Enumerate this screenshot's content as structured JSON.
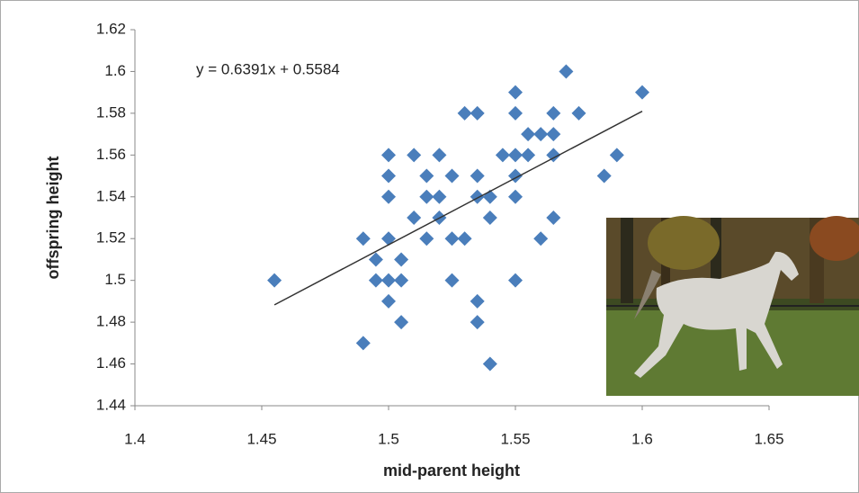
{
  "chart_data": {
    "type": "scatter",
    "x_label": "mid-parent height",
    "y_label": "offspring height",
    "trendline": {
      "slope": 0.6391,
      "intercept": 0.5584,
      "label": "y = 0.6391x + 0.5584",
      "color": "#333333"
    },
    "color": "#4a7ebb",
    "x": [
      1.455,
      1.49,
      1.49,
      1.495,
      1.495,
      1.5,
      1.5,
      1.5,
      1.5,
      1.5,
      1.5,
      1.505,
      1.505,
      1.505,
      1.51,
      1.51,
      1.515,
      1.515,
      1.515,
      1.52,
      1.52,
      1.52,
      1.525,
      1.525,
      1.525,
      1.53,
      1.53,
      1.535,
      1.535,
      1.535,
      1.535,
      1.535,
      1.54,
      1.54,
      1.54,
      1.545,
      1.55,
      1.55,
      1.55,
      1.55,
      1.55,
      1.55,
      1.555,
      1.555,
      1.56,
      1.56,
      1.565,
      1.565,
      1.565,
      1.565,
      1.57,
      1.575,
      1.585,
      1.59,
      1.6
    ],
    "values": [
      1.5,
      1.52,
      1.47,
      1.51,
      1.5,
      1.56,
      1.55,
      1.54,
      1.52,
      1.5,
      1.49,
      1.51,
      1.5,
      1.48,
      1.56,
      1.53,
      1.55,
      1.54,
      1.52,
      1.56,
      1.54,
      1.53,
      1.55,
      1.52,
      1.5,
      1.58,
      1.52,
      1.58,
      1.55,
      1.54,
      1.49,
      1.48,
      1.54,
      1.53,
      1.46,
      1.56,
      1.59,
      1.58,
      1.56,
      1.55,
      1.54,
      1.5,
      1.57,
      1.56,
      1.57,
      1.52,
      1.58,
      1.57,
      1.56,
      1.53,
      1.6,
      1.58,
      1.55,
      1.56,
      1.59
    ],
    "xlim": [
      1.4,
      1.65
    ],
    "xticks": [
      1.4,
      1.45,
      1.5,
      1.55,
      1.6,
      1.65
    ],
    "ylim": [
      1.44,
      1.62
    ],
    "yticks": [
      1.44,
      1.46,
      1.48,
      1.5,
      1.52,
      1.54,
      1.56,
      1.58,
      1.6,
      1.62
    ],
    "grid": false
  }
}
